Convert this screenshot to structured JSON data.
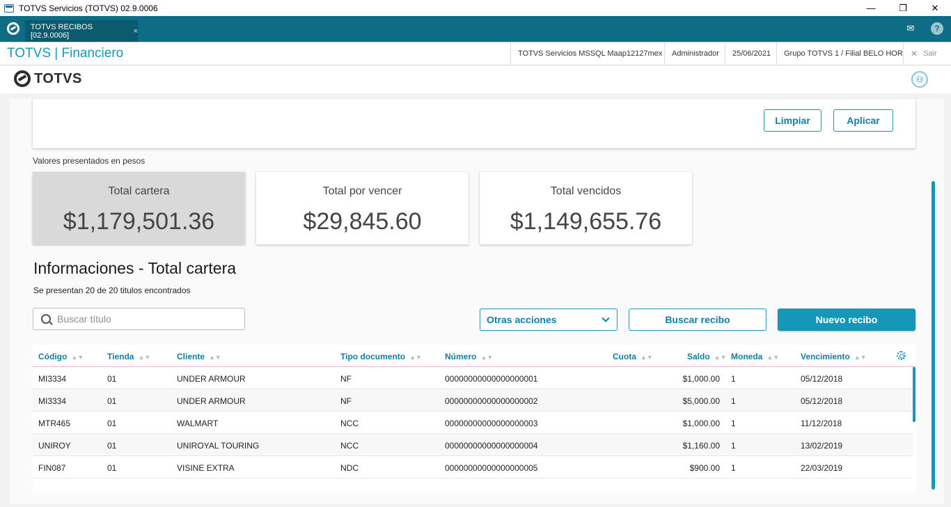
{
  "window": {
    "title": "TOTVS Servicios (TOTVS) 02.9.0006",
    "minimize": "—",
    "maximize": "❐",
    "close": "✕"
  },
  "tabbar": {
    "tab_label": "TOTVS RECIBOS [02.9.0006]",
    "tab_close": "×",
    "mail_icon": "✉",
    "help_icon": "?"
  },
  "header": {
    "module_title": "TOTVS | Financiero",
    "environment": "TOTVS Servicios MSSQL Maap12127mex",
    "user": "Administrador",
    "date": "25/06/2021",
    "branch": "Grupo TOTVS 1 / Filial BELO HOR",
    "exit_icon": "✕",
    "exit_label": "Sair"
  },
  "brand": {
    "name": "TOTVS",
    "avatar_icon": "⚇"
  },
  "filter": {
    "clear_label": "Limpiar",
    "apply_label": "Aplicar"
  },
  "values_note": "Valores presentados en pesos",
  "kpis": [
    {
      "label": "Total cartera",
      "value": "$1,179,501.36"
    },
    {
      "label": "Total por vencer",
      "value": "$29,845.60"
    },
    {
      "label": "Total vencidos",
      "value": "$1,149,655.76"
    }
  ],
  "section": {
    "title": "Informaciones - Total cartera",
    "subtitle": "Se presentan 20 de 20 titulos encontrados"
  },
  "search": {
    "placeholder": "Buscar título"
  },
  "actions": {
    "other_actions": "Otras acciones",
    "search_receipt": "Buscar recibo",
    "new_receipt": "Nuevo recibo"
  },
  "table": {
    "columns": [
      "Código",
      "Tienda",
      "Cliente",
      "Tipo documento",
      "Número",
      "Cuota",
      "Saldo",
      "Moneda",
      "Vencimiento"
    ],
    "sort_icon": "▲▼",
    "rows": [
      {
        "codigo": "MI3334",
        "tienda": "01",
        "cliente": "UNDER ARMOUR",
        "tipo": "NF",
        "numero": "00000000000000000001",
        "cuota": "",
        "saldo": "$1,000.00",
        "moneda": "1",
        "vencimiento": "05/12/2018"
      },
      {
        "codigo": "MI3334",
        "tienda": "01",
        "cliente": "UNDER ARMOUR",
        "tipo": "NF",
        "numero": "00000000000000000002",
        "cuota": "",
        "saldo": "$5,000.00",
        "moneda": "1",
        "vencimiento": "05/12/2018"
      },
      {
        "codigo": "MTR465",
        "tienda": "01",
        "cliente": "WALMART",
        "tipo": "NCC",
        "numero": "00000000000000000003",
        "cuota": "",
        "saldo": "$1,000.00",
        "moneda": "1",
        "vencimiento": "11/12/2018"
      },
      {
        "codigo": "UNIROY",
        "tienda": "01",
        "cliente": "UNIROYAL TOURING",
        "tipo": "NCC",
        "numero": "00000000000000000004",
        "cuota": "",
        "saldo": "$1,160.00",
        "moneda": "1",
        "vencimiento": "13/02/2019"
      },
      {
        "codigo": "FIN087",
        "tienda": "01",
        "cliente": "VISINE EXTRA",
        "tipo": "NDC",
        "numero": "00000000000000000005",
        "cuota": "",
        "saldo": "$900.00",
        "moneda": "1",
        "vencimiento": "22/03/2019"
      }
    ]
  }
}
